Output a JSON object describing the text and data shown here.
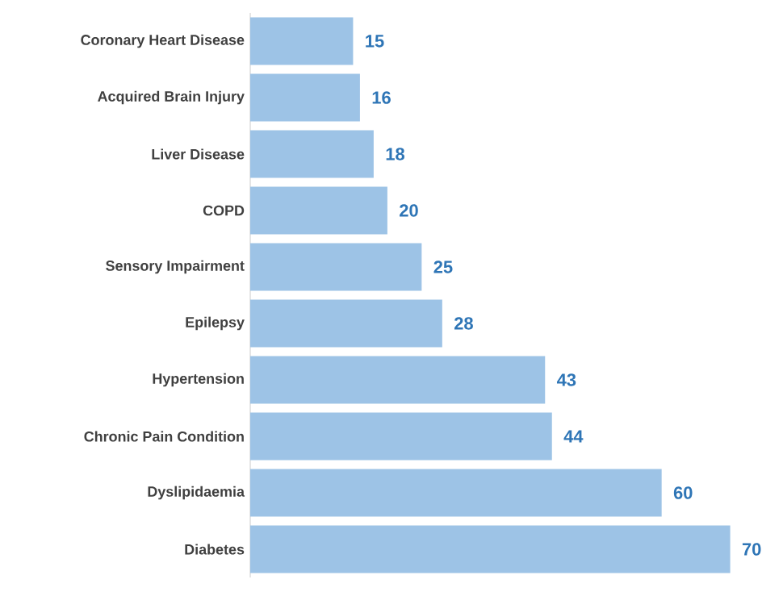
{
  "chart_data": {
    "type": "bar",
    "orientation": "horizontal",
    "categories": [
      "Coronary Heart Disease",
      "Acquired Brain Injury",
      "Liver Disease",
      "COPD",
      "Sensory Impairment",
      "Epilepsy",
      "Hypertension",
      "Chronic Pain Condition",
      "Dyslipidaemia",
      "Diabetes"
    ],
    "values": [
      15,
      16,
      18,
      20,
      25,
      28,
      43,
      44,
      60,
      70
    ],
    "color": "#9dc3e6",
    "data_labels": true
  }
}
